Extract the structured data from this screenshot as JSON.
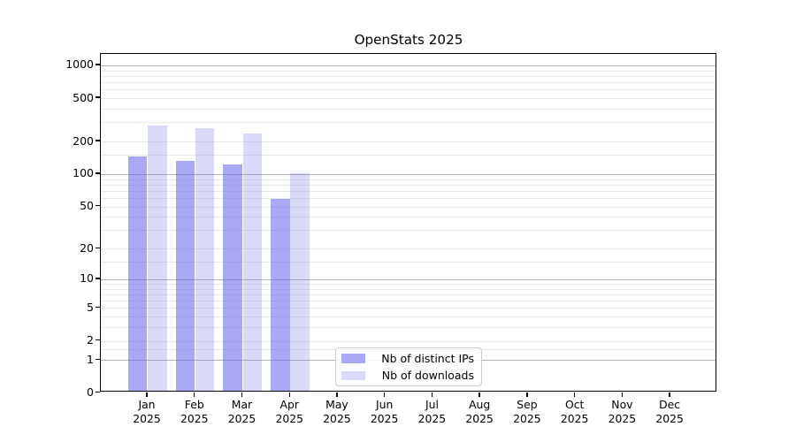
{
  "chart_data": {
    "type": "bar",
    "title": "OpenStats 2025",
    "categories": [
      {
        "month": "Jan",
        "year": "2025"
      },
      {
        "month": "Feb",
        "year": "2025"
      },
      {
        "month": "Mar",
        "year": "2025"
      },
      {
        "month": "Apr",
        "year": "2025"
      },
      {
        "month": "May",
        "year": "2025"
      },
      {
        "month": "Jun",
        "year": "2025"
      },
      {
        "month": "Jul",
        "year": "2025"
      },
      {
        "month": "Aug",
        "year": "2025"
      },
      {
        "month": "Sep",
        "year": "2025"
      },
      {
        "month": "Oct",
        "year": "2025"
      },
      {
        "month": "Nov",
        "year": "2025"
      },
      {
        "month": "Dec",
        "year": "2025"
      }
    ],
    "series": [
      {
        "name": "Nb of distinct IPs",
        "legend_color": "#a8a8f4",
        "bar_color": "rgba(100,100,235,0.56)",
        "values": [
          142,
          129,
          119,
          57,
          null,
          null,
          null,
          null,
          null,
          null,
          null,
          null
        ]
      },
      {
        "name": "Nb of downloads",
        "legend_color": "#d9d9fa",
        "bar_color": "rgba(100,100,235,0.245)",
        "values": [
          271,
          259,
          232,
          99,
          null,
          null,
          null,
          null,
          null,
          null,
          null,
          null
        ]
      }
    ],
    "yscale": "log10(1+y)",
    "ylim": [
      0,
      1270
    ],
    "y_ticks": [
      0,
      1,
      2,
      5,
      10,
      20,
      50,
      100,
      200,
      500,
      1000
    ],
    "grid": "horizontal",
    "grid_major_at": [
      1,
      10,
      100,
      1000
    ],
    "grid_minor_subs": [
      1.5,
      2,
      3,
      4,
      5,
      6,
      7,
      8,
      9
    ],
    "legend_position": "lower-center",
    "colors": {
      "major_grid": "#b3b3b3",
      "minor_grid": "#e9e9e9",
      "spine": "#000000",
      "legend_border": "#cccccc"
    }
  }
}
